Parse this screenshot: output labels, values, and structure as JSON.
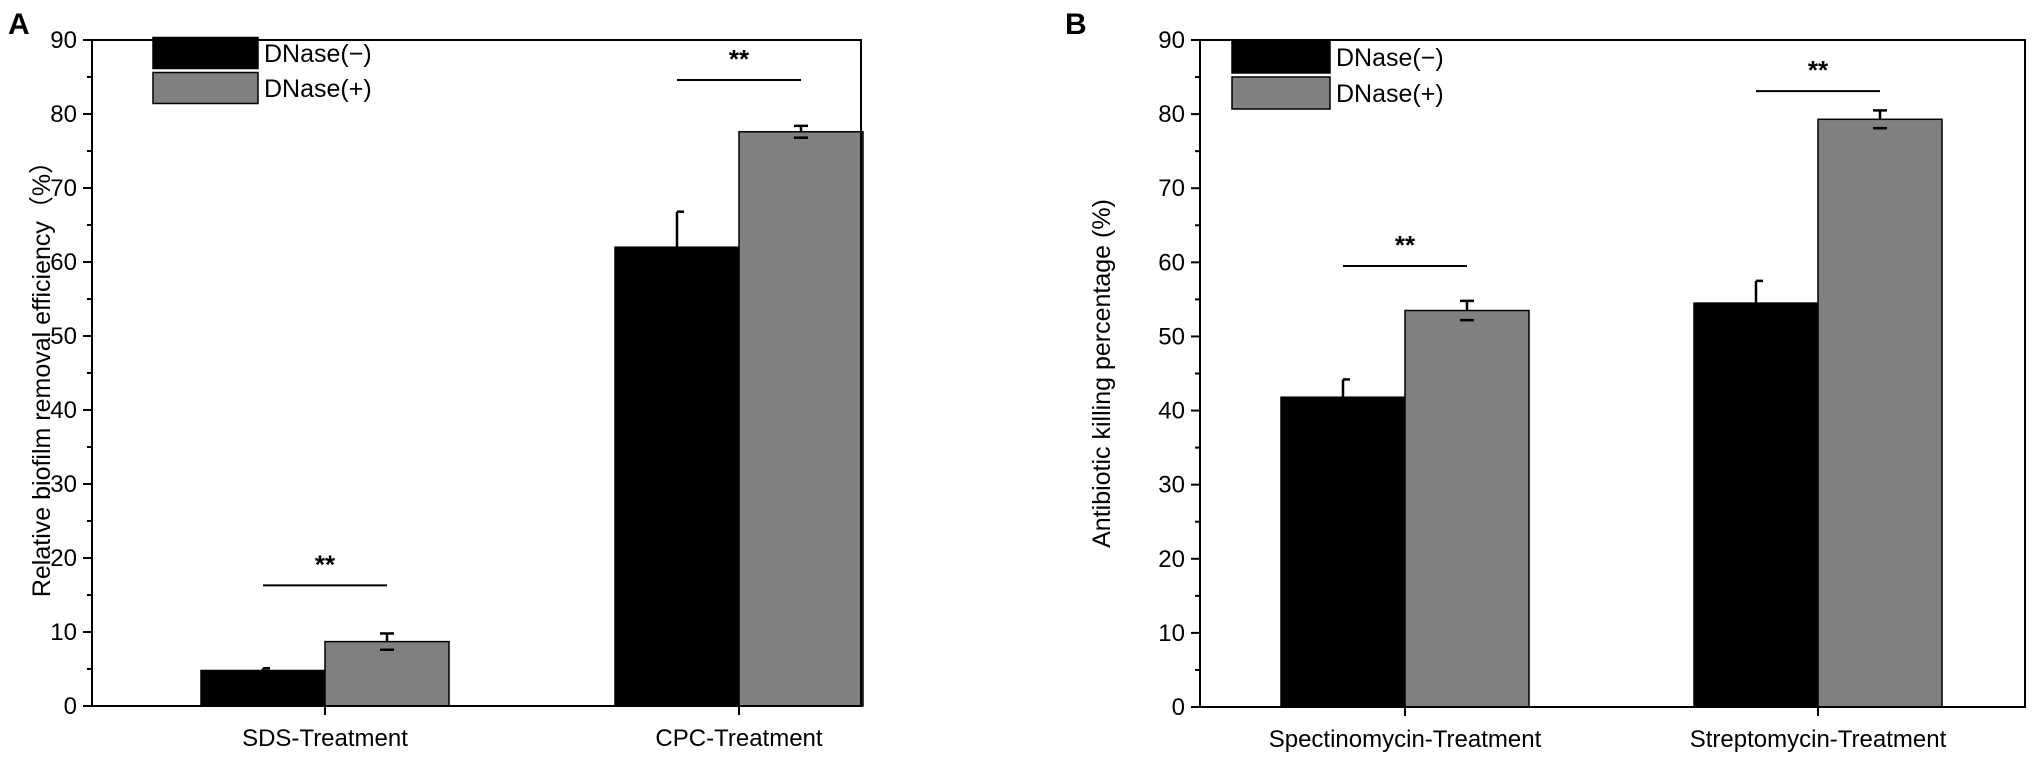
{
  "colors": {
    "series_0": "#000000",
    "series_1": "#808080",
    "axis": "#000000"
  },
  "chart_data": [
    {
      "panel_label": "A",
      "type": "bar",
      "categories": [
        "SDS-Treatment",
        "CPC-Treatment"
      ],
      "series": [
        {
          "name": "DNase(−)",
          "values": [
            4.8,
            62.0
          ],
          "errors": [
            0.3,
            4.8
          ]
        },
        {
          "name": "DNase(+)",
          "values": [
            8.7,
            77.6
          ],
          "errors": [
            1.1,
            0.8
          ]
        }
      ],
      "significance": [
        {
          "category": "SDS-Treatment",
          "label": "**",
          "level": 16.3
        },
        {
          "category": "CPC-Treatment",
          "label": "**",
          "level": 84.6
        }
      ],
      "ylabel": "Relative biofilm removal efficiency（%）",
      "xlabel": "",
      "ylim": [
        0,
        90
      ],
      "yticks": [
        "0",
        "10",
        "20",
        "30",
        "40",
        "50",
        "60",
        "70",
        "80",
        "90"
      ],
      "minor_ticks": true,
      "legend_position": "top-left",
      "grid": false
    },
    {
      "panel_label": "B",
      "type": "bar",
      "categories": [
        "Spectinomycin-Treatment",
        "Streptomycin-Treatment"
      ],
      "series": [
        {
          "name": "DNase(−)",
          "values": [
            41.8,
            54.5
          ],
          "errors": [
            2.4,
            3.0
          ]
        },
        {
          "name": "DNase(+)",
          "values": [
            53.5,
            79.3
          ],
          "errors": [
            1.3,
            1.2
          ]
        }
      ],
      "significance": [
        {
          "category": "Spectinomycin-Treatment",
          "label": "**",
          "level": 59.5
        },
        {
          "category": "Streptomycin-Treatment",
          "label": "**",
          "level": 83.1
        }
      ],
      "ylabel": "Antibiotic killing percentage (%)",
      "xlabel": "",
      "ylim": [
        0,
        90
      ],
      "yticks": [
        "0",
        "10",
        "20",
        "30",
        "40",
        "50",
        "60",
        "70",
        "80",
        "90"
      ],
      "minor_ticks": true,
      "legend_position": "top-left",
      "grid": false
    }
  ]
}
